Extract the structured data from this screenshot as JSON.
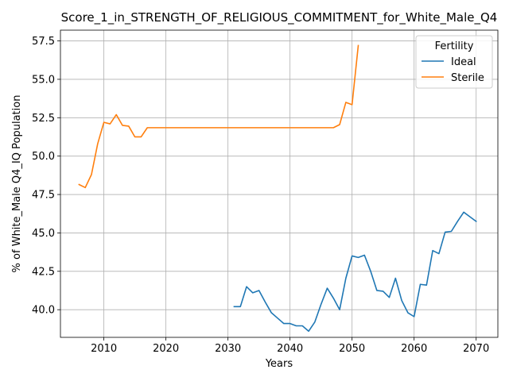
{
  "chart_data": {
    "type": "line",
    "title": "Score_1_in_STRENGTH_OF_RELIGIOUS_COMMITMENT_for_White_Male_Q4",
    "xlabel": "Years",
    "ylabel": "% of White_Male Q4_IQ Population",
    "xlim": [
      2003,
      2073.5
    ],
    "ylim": [
      38.2,
      58.2
    ],
    "x_ticks": [
      2010,
      2020,
      2030,
      2040,
      2050,
      2060,
      2070
    ],
    "x_tick_labels": [
      "2010",
      "2020",
      "2030",
      "2040",
      "2050",
      "2060",
      "2070"
    ],
    "y_ticks": [
      40.0,
      42.5,
      45.0,
      47.5,
      50.0,
      52.5,
      55.0,
      57.5
    ],
    "y_tick_labels": [
      "40.0",
      "42.5",
      "45.0",
      "47.5",
      "50.0",
      "52.5",
      "55.0",
      "57.5"
    ],
    "grid": true,
    "legend": {
      "title": "Fertility",
      "placement": "top-right"
    },
    "series": [
      {
        "name": "Ideal",
        "color": "#1f77b4",
        "x": [
          2031,
          2032,
          2033,
          2034,
          2035,
          2036,
          2037,
          2038,
          2039,
          2040,
          2041,
          2042,
          2043,
          2044,
          2045,
          2046,
          2047,
          2048,
          2049,
          2050,
          2051,
          2052,
          2053,
          2054,
          2055,
          2056,
          2057,
          2058,
          2059,
          2060,
          2061,
          2062,
          2063,
          2064,
          2065,
          2066,
          2067,
          2068,
          2069,
          2070
        ],
        "y": [
          40.2,
          40.2,
          41.5,
          41.1,
          41.25,
          40.5,
          39.8,
          39.45,
          39.1,
          39.1,
          38.95,
          38.95,
          38.6,
          39.2,
          40.35,
          41.4,
          40.75,
          40.0,
          42.05,
          43.5,
          43.4,
          43.55,
          42.5,
          41.25,
          41.2,
          40.8,
          42.05,
          40.6,
          39.8,
          39.55,
          41.65,
          41.6,
          43.85,
          43.65,
          45.05,
          45.1,
          45.75,
          46.35,
          46.05,
          45.75
        ]
      },
      {
        "name": "Sterile",
        "color": "#ff7f0e",
        "x": [
          2006,
          2007,
          2008,
          2009,
          2010,
          2011,
          2012,
          2013,
          2014,
          2015,
          2016,
          2017,
          2018,
          2019,
          2020,
          2021,
          2022,
          2023,
          2024,
          2025,
          2026,
          2027,
          2028,
          2029,
          2030,
          2031,
          2032,
          2033,
          2034,
          2035,
          2036,
          2037,
          2038,
          2039,
          2040,
          2041,
          2042,
          2043,
          2044,
          2045,
          2046,
          2047,
          2048,
          2049,
          2050,
          2051
        ],
        "y": [
          48.15,
          47.95,
          48.8,
          50.8,
          52.2,
          52.1,
          52.7,
          52.0,
          51.95,
          51.25,
          51.25,
          51.85,
          51.85,
          51.85,
          51.85,
          51.85,
          51.85,
          51.85,
          51.85,
          51.85,
          51.85,
          51.85,
          51.85,
          51.85,
          51.85,
          51.85,
          51.85,
          51.85,
          51.85,
          51.85,
          51.85,
          51.85,
          51.85,
          51.85,
          51.85,
          51.85,
          51.85,
          51.85,
          51.85,
          51.85,
          51.85,
          51.85,
          52.05,
          53.5,
          53.35,
          57.2
        ]
      }
    ]
  }
}
